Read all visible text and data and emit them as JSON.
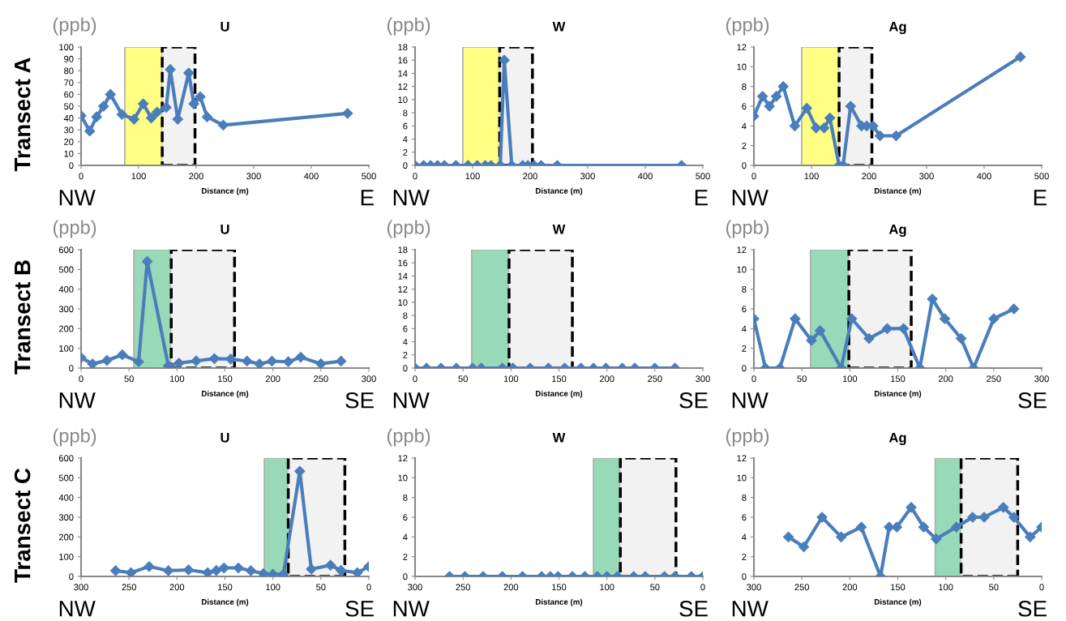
{
  "chart_data": [
    {
      "type": "line",
      "title": "U",
      "ylabel": "(ppb)",
      "xlabel": "Distance (m)",
      "annotations": [
        "NW",
        "E",
        "Transect A"
      ],
      "xlim": [
        0,
        500
      ],
      "xticks": [
        0,
        100,
        200,
        300,
        400,
        500
      ],
      "ylim": [
        0,
        100
      ],
      "yticks": [
        0,
        10,
        20,
        30,
        40,
        50,
        60,
        70,
        80,
        90,
        100
      ],
      "marker": "diamond",
      "line_style": "solid",
      "grid": false,
      "legend": false,
      "series": [
        {
          "color": "#4a7ebb",
          "x": [
            0,
            15,
            27,
            39,
            51,
            71,
            92,
            108,
            122,
            132,
            148,
            155,
            168,
            187,
            196,
            207,
            219,
            247,
            463
          ],
          "values": [
            42,
            29,
            41,
            50,
            60,
            43,
            39,
            52,
            40,
            45,
            49,
            81,
            39,
            78,
            52,
            58,
            41,
            34,
            44
          ]
        }
      ],
      "bands": [
        {
          "axis": "x",
          "from": 76,
          "to": 141,
          "color": "#ffff66"
        },
        {
          "axis": "x",
          "from": 141,
          "to": 198
        }
      ]
    },
    {
      "type": "line",
      "title": "W",
      "ylabel": "(ppb)",
      "xlabel": "Distance (m)",
      "annotations": [
        "NW",
        "E"
      ],
      "xlim": [
        0,
        500
      ],
      "xticks": [
        0,
        100,
        200,
        300,
        400,
        500
      ],
      "ylim": [
        0,
        18
      ],
      "yticks": [
        0,
        2,
        4,
        6,
        8,
        10,
        12,
        14,
        16,
        18
      ],
      "marker": "diamond",
      "line_style": "solid",
      "grid": false,
      "legend": false,
      "series": [
        {
          "color": "#4a7ebb",
          "x": [
            0,
            15,
            27,
            39,
            51,
            71,
            92,
            108,
            122,
            132,
            148,
            155,
            168,
            187,
            196,
            207,
            219,
            247,
            463
          ],
          "values": [
            0,
            0,
            0,
            0,
            0,
            0,
            0,
            0,
            0,
            0,
            0,
            16,
            0,
            0,
            0,
            0,
            0,
            0,
            0
          ]
        }
      ],
      "bands": [
        {
          "axis": "x",
          "from": 83,
          "to": 147,
          "color": "#ffff66"
        },
        {
          "axis": "x",
          "from": 147,
          "to": 204
        }
      ]
    },
    {
      "type": "line",
      "title": "Ag",
      "ylabel": "(ppb)",
      "xlabel": "Distance (m)",
      "annotations": [
        "NW",
        "E"
      ],
      "xlim": [
        0,
        500
      ],
      "xticks": [
        0,
        100,
        200,
        300,
        400,
        500
      ],
      "ylim": [
        0,
        12
      ],
      "yticks": [
        0,
        2,
        4,
        6,
        8,
        10,
        12
      ],
      "marker": "diamond",
      "line_style": "solid",
      "grid": false,
      "legend": false,
      "series": [
        {
          "color": "#4a7ebb",
          "x": [
            0,
            15,
            27,
            39,
            51,
            71,
            92,
            108,
            122,
            132,
            148,
            155,
            168,
            187,
            196,
            207,
            219,
            247,
            463
          ],
          "values": [
            5,
            7,
            6,
            7,
            8,
            4,
            5.8,
            3.8,
            3.8,
            4.8,
            0,
            0,
            6,
            4,
            4,
            4,
            3,
            3,
            11
          ]
        }
      ],
      "bands": [
        {
          "axis": "x",
          "from": 83,
          "to": 148,
          "color": "#ffff66"
        },
        {
          "axis": "x",
          "from": 148,
          "to": 205
        }
      ]
    },
    {
      "type": "line",
      "title": "U",
      "ylabel": "(ppb)",
      "xlabel": "Distance (m)",
      "annotations": [
        "NW",
        "SE",
        "Transect B"
      ],
      "xlim": [
        0,
        300
      ],
      "xticks": [
        0,
        50,
        100,
        150,
        200,
        250,
        300
      ],
      "ylim": [
        0,
        600
      ],
      "yticks": [
        0,
        100,
        200,
        300,
        400,
        500,
        600
      ],
      "marker": "diamond",
      "line_style": "solid",
      "grid": false,
      "legend": false,
      "series": [
        {
          "color": "#4a7ebb",
          "x": [
            0,
            12,
            27,
            43,
            60,
            69,
            91,
            102,
            120,
            139,
            156,
            173,
            186,
            199,
            216,
            229,
            250,
            271
          ],
          "values": [
            53,
            21,
            39,
            67,
            32,
            540,
            11,
            25,
            36,
            48,
            46,
            35,
            21,
            35,
            32,
            55,
            22,
            35
          ]
        }
      ],
      "bands": [
        {
          "axis": "x",
          "from": 55,
          "to": 94,
          "color": "#7fd1a6"
        },
        {
          "axis": "x",
          "from": 94,
          "to": 160
        }
      ]
    },
    {
      "type": "line",
      "title": "W",
      "ylabel": "(ppb)",
      "xlabel": "Distance (m)",
      "annotations": [
        "NW",
        "SE"
      ],
      "xlim": [
        0,
        300
      ],
      "xticks": [
        0,
        50,
        100,
        150,
        200,
        250,
        300
      ],
      "ylim": [
        0,
        18
      ],
      "yticks": [
        0,
        2,
        4,
        6,
        8,
        10,
        12,
        14,
        16,
        18
      ],
      "marker": "diamond",
      "line_style": "solid",
      "grid": false,
      "legend": false,
      "series": [
        {
          "color": "#4a7ebb",
          "x": [
            0,
            12,
            27,
            43,
            60,
            69,
            91,
            102,
            120,
            139,
            156,
            173,
            186,
            199,
            216,
            229,
            250,
            271
          ],
          "values": [
            0,
            0,
            0,
            0,
            0,
            0,
            0,
            0,
            0,
            0,
            0,
            0,
            0,
            0,
            0,
            0,
            0,
            0
          ]
        }
      ],
      "bands": [
        {
          "axis": "x",
          "from": 59,
          "to": 98,
          "color": "#7fd1a6"
        },
        {
          "axis": "x",
          "from": 98,
          "to": 164
        }
      ]
    },
    {
      "type": "line",
      "title": "Ag",
      "ylabel": "(ppb)",
      "xlabel": "Distance (m)",
      "annotations": [
        "NW",
        "SE"
      ],
      "xlim": [
        0,
        300
      ],
      "xticks": [
        0,
        50,
        100,
        150,
        200,
        250,
        300
      ],
      "ylim": [
        0,
        12
      ],
      "yticks": [
        0,
        2,
        4,
        6,
        8,
        10,
        12
      ],
      "marker": "diamond",
      "line_style": "solid",
      "grid": false,
      "legend": false,
      "series": [
        {
          "color": "#4a7ebb",
          "x": [
            0,
            12,
            27,
            43,
            60,
            69,
            91,
            102,
            120,
            139,
            156,
            173,
            186,
            199,
            216,
            229,
            250,
            271
          ],
          "values": [
            5,
            0,
            0,
            5,
            2.8,
            3.8,
            0,
            5,
            3,
            4,
            4,
            0,
            7,
            5,
            3,
            0,
            5,
            6
          ]
        }
      ],
      "bands": [
        {
          "axis": "x",
          "from": 59,
          "to": 99,
          "color": "#7fd1a6"
        },
        {
          "axis": "x",
          "from": 99,
          "to": 164
        }
      ]
    },
    {
      "type": "line",
      "title": "U",
      "ylabel": "(ppb)",
      "xlabel": "Distance (m)",
      "annotations": [
        "NW",
        "SE",
        "Transect C"
      ],
      "xlim": [
        300,
        0
      ],
      "xticks": [
        300,
        250,
        200,
        150,
        100,
        50,
        0
      ],
      "ylim": [
        0,
        600
      ],
      "yticks": [
        0,
        100,
        200,
        300,
        400,
        500,
        600
      ],
      "marker": "diamond",
      "line_style": "solid",
      "grid": false,
      "legend": false,
      "series": [
        {
          "color": "#4a7ebb",
          "x": [
            264,
            248,
            229,
            209,
            188,
            168,
            159,
            151,
            136,
            123,
            110,
            100,
            89,
            72,
            60,
            40,
            29,
            12,
            0
          ],
          "values": [
            29,
            19,
            50,
            29,
            33,
            19,
            30,
            43,
            43,
            29,
            14,
            11,
            11,
            533,
            37,
            57,
            30,
            19,
            50
          ]
        }
      ],
      "bands": [
        {
          "axis": "x",
          "from": 109,
          "to": 84,
          "color": "#7fd1a6"
        },
        {
          "axis": "x",
          "from": 84,
          "to": 25
        }
      ]
    },
    {
      "type": "line",
      "title": "W",
      "ylabel": "(ppb)",
      "xlabel": "Distance (m)",
      "annotations": [
        "NW",
        "SE"
      ],
      "xlim": [
        300,
        0
      ],
      "xticks": [
        300,
        250,
        200,
        150,
        100,
        50,
        0
      ],
      "ylim": [
        0,
        12
      ],
      "yticks": [
        0,
        2,
        4,
        6,
        8,
        10,
        12
      ],
      "marker": "diamond",
      "line_style": "solid",
      "grid": false,
      "legend": false,
      "series": [
        {
          "color": "#4a7ebb",
          "x": [
            264,
            248,
            229,
            209,
            188,
            168,
            159,
            151,
            136,
            123,
            110,
            100,
            89,
            72,
            60,
            40,
            29,
            12,
            0
          ],
          "values": [
            0,
            0,
            0,
            0,
            0,
            0,
            0,
            0,
            0,
            0,
            0,
            0,
            0,
            0,
            0,
            0,
            0,
            0,
            0
          ]
        }
      ],
      "bands": [
        {
          "axis": "x",
          "from": 114,
          "to": 86,
          "color": "#7fd1a6"
        },
        {
          "axis": "x",
          "from": 86,
          "to": 28
        }
      ]
    },
    {
      "type": "line",
      "title": "Ag",
      "ylabel": "(ppb)",
      "xlabel": "Distance (m)",
      "annotations": [
        "NW",
        "SE"
      ],
      "xlim": [
        300,
        0
      ],
      "xticks": [
        300,
        250,
        200,
        150,
        100,
        50,
        0
      ],
      "ylim": [
        0,
        12
      ],
      "yticks": [
        0,
        2,
        4,
        6,
        8,
        10,
        12
      ],
      "marker": "diamond",
      "line_style": "solid",
      "grid": false,
      "legend": false,
      "series": [
        {
          "color": "#4a7ebb",
          "x": [
            264,
            248,
            229,
            209,
            188,
            168,
            159,
            151,
            136,
            123,
            110,
            89,
            72,
            60,
            40,
            29,
            12,
            0
          ],
          "values": [
            4,
            3,
            6,
            4,
            5,
            0,
            5,
            5,
            7,
            5,
            3.8,
            5,
            6,
            6,
            7,
            6,
            4,
            5
          ]
        }
      ],
      "bands": [
        {
          "axis": "x",
          "from": 111,
          "to": 84,
          "color": "#7fd1a6"
        },
        {
          "axis": "x",
          "from": 84,
          "to": 25
        }
      ]
    }
  ]
}
